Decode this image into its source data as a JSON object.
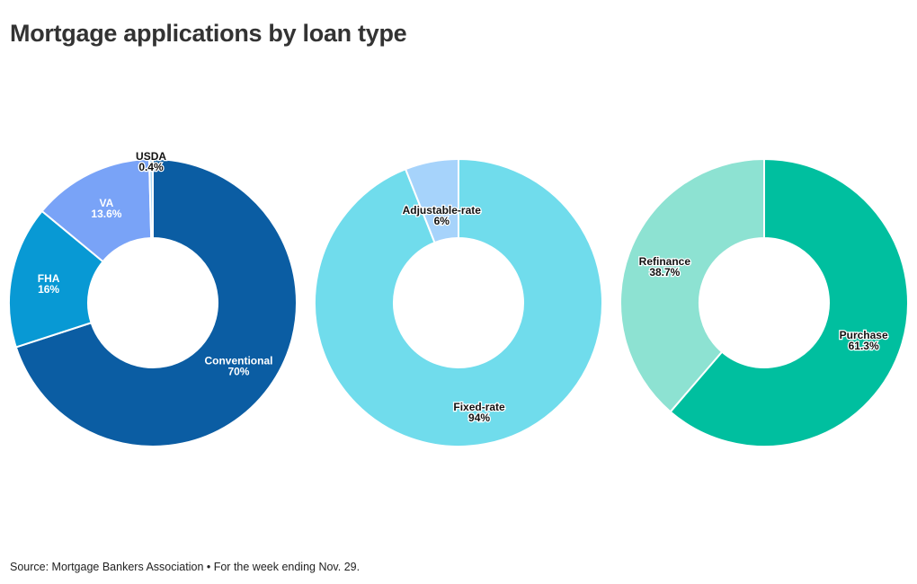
{
  "title": "Mortgage applications by loan type",
  "source": "Source: Mortgage Bankers Association • For the week ending Nov. 29.",
  "chart_data": [
    {
      "type": "pie",
      "slices": [
        {
          "label": "Conventional",
          "value": 70,
          "display": "70%",
          "color": "#0b5da3",
          "text_color": "#ffffff"
        },
        {
          "label": "FHA",
          "value": 16,
          "display": "16%",
          "color": "#0899d4",
          "text_color": "#ffffff"
        },
        {
          "label": "VA",
          "value": 13.6,
          "display": "13.6%",
          "color": "#79a3f7",
          "text_color": "#ffffff"
        },
        {
          "label": "USDA",
          "value": 0.4,
          "display": "0.4%",
          "color": "#a9d6f5",
          "text_color": "#111111"
        }
      ]
    },
    {
      "type": "pie",
      "slices": [
        {
          "label": "Fixed-rate",
          "value": 94,
          "display": "94%",
          "color": "#70dcec",
          "text_color": "#111111"
        },
        {
          "label": "Adjustable-rate",
          "value": 6,
          "display": "6%",
          "color": "#a6d3fb",
          "text_color": "#111111"
        }
      ]
    },
    {
      "type": "pie",
      "slices": [
        {
          "label": "Purchase",
          "value": 61.3,
          "display": "61.3%",
          "color": "#00bf9f",
          "text_color": "#111111"
        },
        {
          "label": "Refinance",
          "value": 38.7,
          "display": "38.7%",
          "color": "#8de2d2",
          "text_color": "#111111"
        }
      ]
    }
  ]
}
